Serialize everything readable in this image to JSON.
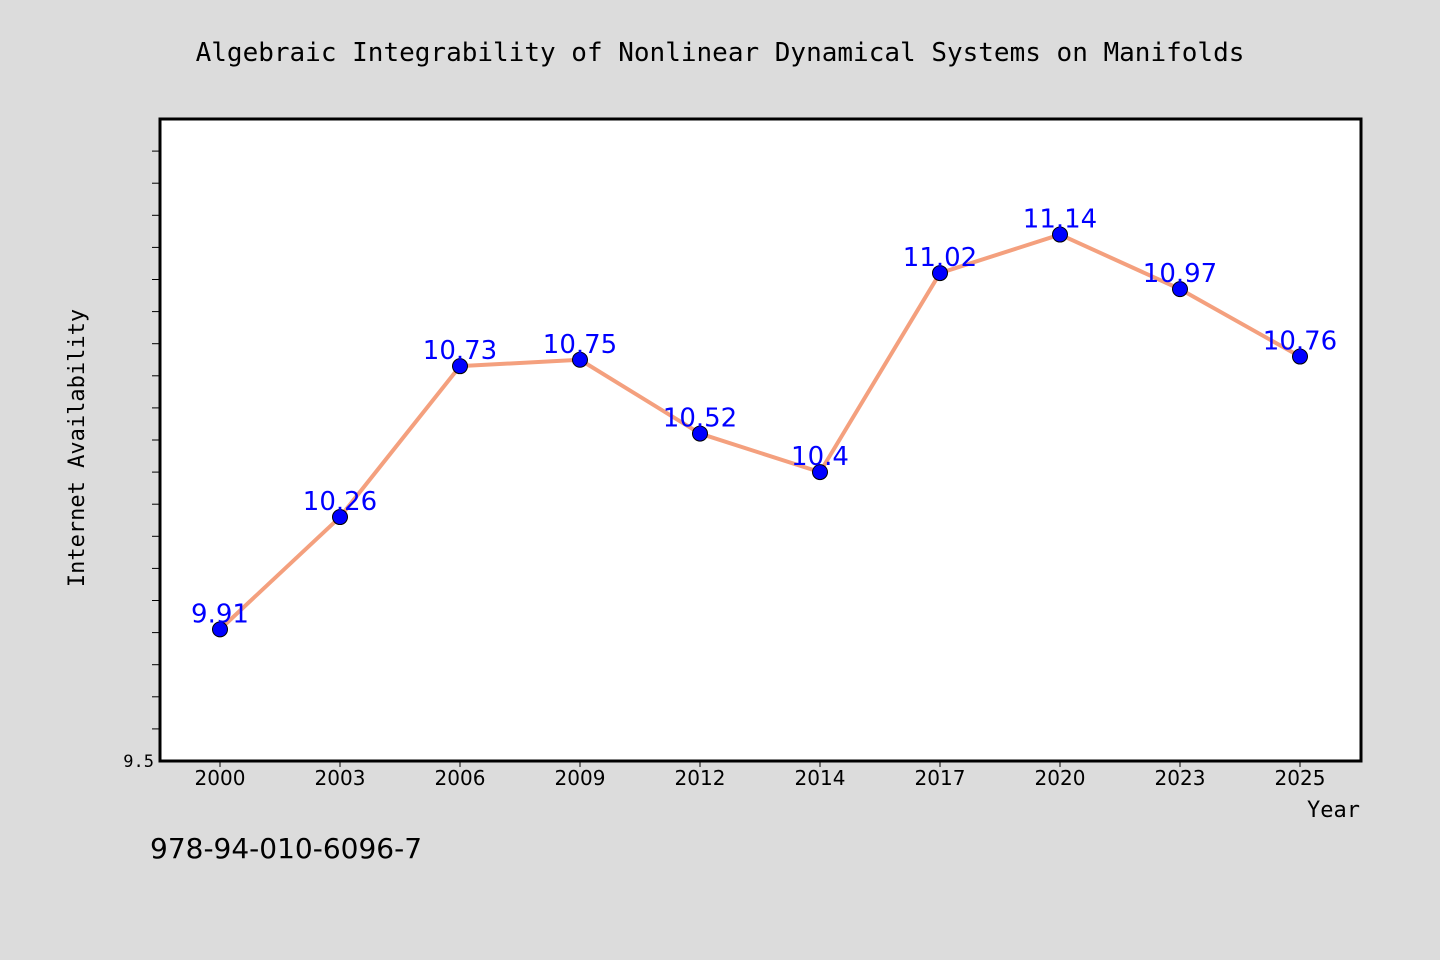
{
  "footer_text": "978-94-010-6096-7",
  "colors": {
    "background": "#dcdcdc",
    "plot_background": "#ffffff",
    "line": "#f4a07e",
    "marker": "#0000ff",
    "data_label": "#0000ff",
    "text": "#000000"
  },
  "chart_data": {
    "type": "line",
    "title": "Algebraic Integrability of Nonlinear Dynamical Systems on Manifolds",
    "xlabel": "Year",
    "ylabel": "Internet Availability",
    "categories": [
      "2000",
      "2003",
      "2006",
      "2009",
      "2012",
      "2014",
      "2017",
      "2020",
      "2023",
      "2025"
    ],
    "series": [
      {
        "values": [
          9.91,
          10.26,
          10.73,
          10.75,
          10.52,
          10.4,
          11.02,
          11.14,
          10.97,
          10.76
        ],
        "data_labels": [
          "9.91",
          "10.26",
          "10.73",
          "10.75",
          "10.52",
          "10.4",
          "11.02",
          "11.14",
          "10.97",
          "10.76"
        ]
      }
    ],
    "ylim": [
      9.5,
      11.5
    ],
    "y_tick_labels": [
      "9.5"
    ],
    "y_minor_tick_step": 0.1,
    "grid": false,
    "legend": "none"
  }
}
